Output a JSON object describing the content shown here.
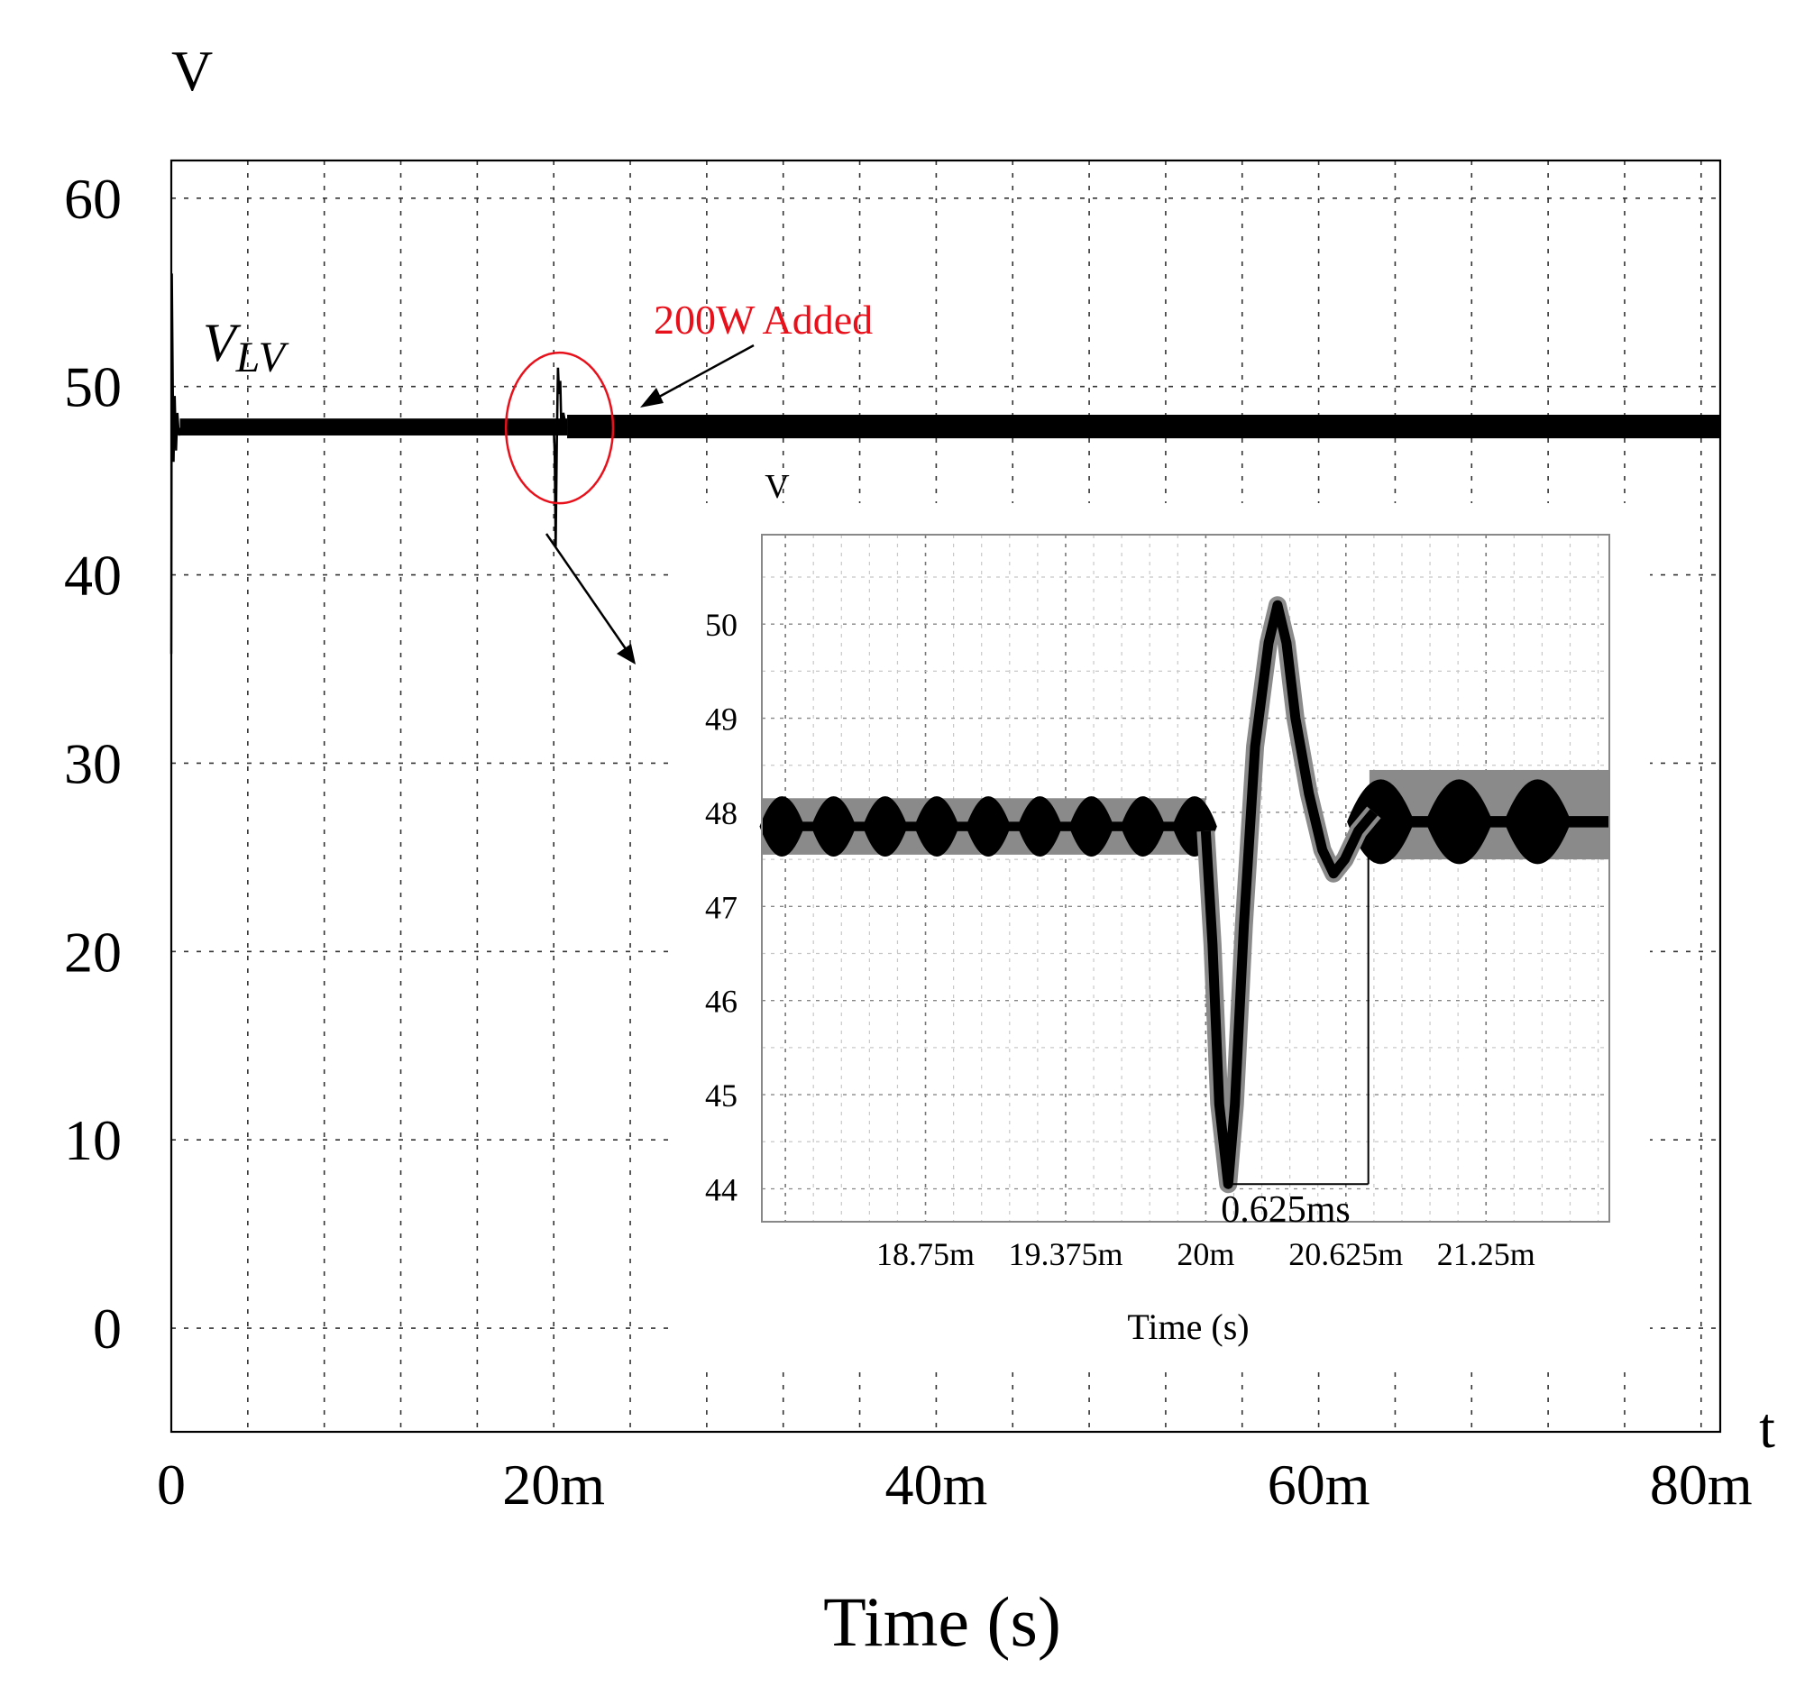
{
  "chart_data": [
    {
      "id": "main",
      "type": "line",
      "title": "",
      "ylabel": "V",
      "xlabel": "Time (s)",
      "x_axis_end_label": "t",
      "xlim": [
        0,
        0.081
      ],
      "ylim": [
        -5.5,
        62
      ],
      "x_ticks": [
        {
          "value": 0,
          "label": "0"
        },
        {
          "value": 0.02,
          "label": "20m"
        },
        {
          "value": 0.04,
          "label": "40m"
        },
        {
          "value": 0.06,
          "label": "60m"
        },
        {
          "value": 0.08,
          "label": "80m"
        }
      ],
      "y_ticks": [
        {
          "value": 0,
          "label": "0"
        },
        {
          "value": 10,
          "label": "10"
        },
        {
          "value": 20,
          "label": "20"
        },
        {
          "value": 30,
          "label": "30"
        },
        {
          "value": 40,
          "label": "40"
        },
        {
          "value": 50,
          "label": "50"
        },
        {
          "value": 60,
          "label": "60"
        }
      ],
      "x_grid_step": 0.004,
      "y_grid_step": 10,
      "grid": true,
      "series": [
        {
          "name": "V_LV",
          "label_main": "V",
          "label_sub": "LV",
          "color": "#000000",
          "steady_value": 47.8,
          "ripple_band": [
            47.4,
            48.3
          ],
          "startup_spike_peak": 56,
          "startup_spike_min": 46.0,
          "load_step_time": 0.02,
          "load_step_min": 44,
          "load_step_peak": 50.3
        }
      ],
      "annotations": [
        {
          "type": "text",
          "text": "200W Added",
          "color": "#e8111b"
        },
        {
          "type": "ellipse",
          "center": [
            0.0203,
            47.8
          ],
          "rx_data": 0.0028,
          "ry_data": 4.0,
          "color": "#e8111b"
        }
      ]
    },
    {
      "id": "inset",
      "type": "line",
      "title": "",
      "ylabel": "V",
      "xlabel": "Time (s)",
      "xlim": [
        0.01802,
        0.0218
      ],
      "ylim": [
        43.65,
        50.95
      ],
      "x_ticks": [
        {
          "value": 0.01875,
          "label": "18.75m"
        },
        {
          "value": 0.019375,
          "label": "19.375m"
        },
        {
          "value": 0.02,
          "label": "20m"
        },
        {
          "value": 0.020625,
          "label": "20.625m"
        },
        {
          "value": 0.02125,
          "label": "21.25m"
        }
      ],
      "y_ticks": [
        {
          "value": 44,
          "label": "44"
        },
        {
          "value": 45,
          "label": "45"
        },
        {
          "value": 46,
          "label": "46"
        },
        {
          "value": 47,
          "label": "47"
        },
        {
          "value": 48,
          "label": "48"
        },
        {
          "value": 49,
          "label": "49"
        },
        {
          "value": 50,
          "label": "50"
        }
      ],
      "x_grid_step": 0.000125,
      "y_grid_step": 0.5,
      "grid": true,
      "series": [
        {
          "name": "V_LV zoom",
          "color": "#000000",
          "band_color": "#8a8a8a",
          "points": [
            [
              0.02,
              47.8
            ],
            [
              0.02003,
              46.6
            ],
            [
              0.02006,
              44.9
            ],
            [
              0.0201,
              44.05
            ],
            [
              0.02013,
              44.9
            ],
            [
              0.02017,
              46.8
            ],
            [
              0.02022,
              48.7
            ],
            [
              0.02028,
              49.8
            ],
            [
              0.02032,
              50.2
            ],
            [
              0.02036,
              49.8
            ],
            [
              0.0204,
              49.0
            ],
            [
              0.02046,
              48.2
            ],
            [
              0.02052,
              47.6
            ],
            [
              0.02057,
              47.35
            ],
            [
              0.02062,
              47.5
            ],
            [
              0.02068,
              47.8
            ],
            [
              0.02075,
              48.0
            ]
          ],
          "before_band": [
            47.65,
            48.05
          ],
          "after_band": [
            47.6,
            48.2
          ],
          "gray_before": [
            47.55,
            48.15
          ],
          "gray_after": [
            47.5,
            48.45
          ]
        }
      ],
      "annotations": [
        {
          "type": "interval",
          "label": "0.625ms",
          "from": 0.0201,
          "to": 0.020725
        }
      ]
    }
  ]
}
